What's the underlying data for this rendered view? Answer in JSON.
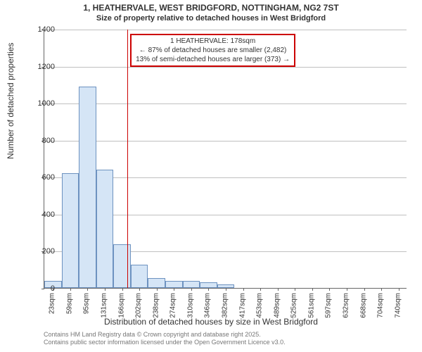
{
  "title_line1": "1, HEATHERVALE, WEST BRIDGFORD, NOTTINGHAM, NG2 7ST",
  "title_line2": "Size of property relative to detached houses in West Bridgford",
  "ylabel": "Number of detached properties",
  "xlabel": "Distribution of detached houses by size in West Bridgford",
  "footer_line1": "Contains HM Land Registry data © Crown copyright and database right 2025.",
  "footer_line2": "Contains public sector information licensed under the Open Government Licence v3.0.",
  "chart": {
    "type": "histogram",
    "ylim": [
      0,
      1400
    ],
    "yticks": [
      0,
      200,
      400,
      600,
      800,
      1000,
      1200,
      1400
    ],
    "x_start_sqm": 5,
    "x_bin_width_sqm": 36,
    "xticks_sqm": [
      23,
      59,
      95,
      131,
      166,
      202,
      238,
      274,
      310,
      346,
      382,
      417,
      453,
      489,
      525,
      561,
      597,
      632,
      668,
      704,
      740
    ],
    "xtick_unit": "sqm",
    "bar_fill": "#d5e5f6",
    "bar_stroke": "#6d92c0",
    "grid_color": "#c0c0c0",
    "background_color": "#ffffff",
    "bars": [
      40,
      620,
      1090,
      640,
      235,
      125,
      55,
      40,
      40,
      30,
      20,
      0,
      0,
      0,
      0,
      0,
      0,
      0,
      0,
      0,
      0
    ],
    "marker": {
      "value_sqm": 178,
      "color": "#cc0000"
    },
    "callout": {
      "border_color": "#cc0000",
      "line1": "1 HEATHERVALE: 178sqm",
      "line2": "← 87% of detached houses are smaller (2,482)",
      "line3": "13% of semi-detached houses are larger (373) →"
    }
  }
}
